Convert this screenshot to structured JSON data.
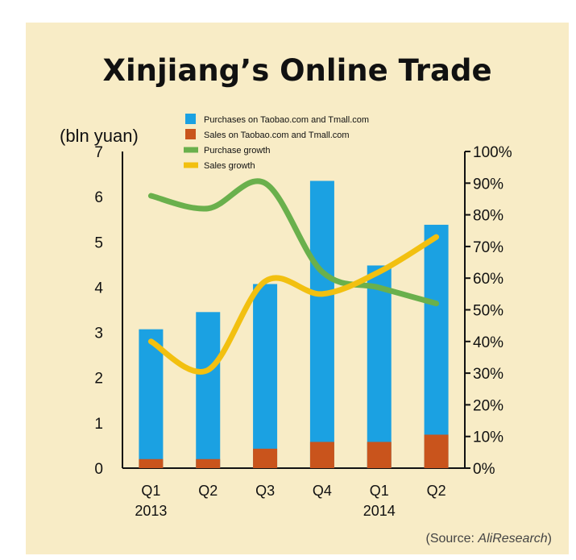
{
  "chart_data": {
    "type": "bar",
    "title": "Xinjiang’s Online Trade",
    "ylabel": "(bln yuan)",
    "source_prefix": "(Source: ",
    "source_name": "AliResearch",
    "source_suffix": ")",
    "categories": [
      "Q1",
      "Q2",
      "Q3",
      "Q4",
      "Q1",
      "Q2"
    ],
    "years": [
      "2013",
      "",
      "",
      "",
      "2014",
      ""
    ],
    "ylim": [
      0,
      7
    ],
    "y_ticks": [
      "0",
      "1",
      "2",
      "3",
      "4",
      "5",
      "6",
      "7"
    ],
    "y2lim": [
      0,
      100
    ],
    "y2_ticks": [
      "0%",
      "10%",
      "20%",
      "30%",
      "40%",
      "50%",
      "60%",
      "70%",
      "80%",
      "90%",
      "100%"
    ],
    "legend_position": "top",
    "series": [
      {
        "name": "Purchases on Taobao.com and Tmall.com",
        "type": "bar",
        "color": "#1ba1e2",
        "values": [
          3.07,
          3.45,
          4.07,
          6.35,
          4.48,
          5.38
        ]
      },
      {
        "name": "Sales on Taobao.com and Tmall.com",
        "type": "bar",
        "color": "#c9541c",
        "values": [
          0.2,
          0.2,
          0.43,
          0.58,
          0.58,
          0.74
        ]
      },
      {
        "name": "Purchase growth",
        "type": "line",
        "axis": "right",
        "color": "#6ab04c",
        "values": [
          86,
          82,
          90,
          62,
          57,
          52
        ]
      },
      {
        "name": "Sales growth",
        "type": "line",
        "axis": "right",
        "color": "#f2c010",
        "values": [
          40,
          31,
          59,
          55,
          62,
          73
        ]
      }
    ]
  }
}
